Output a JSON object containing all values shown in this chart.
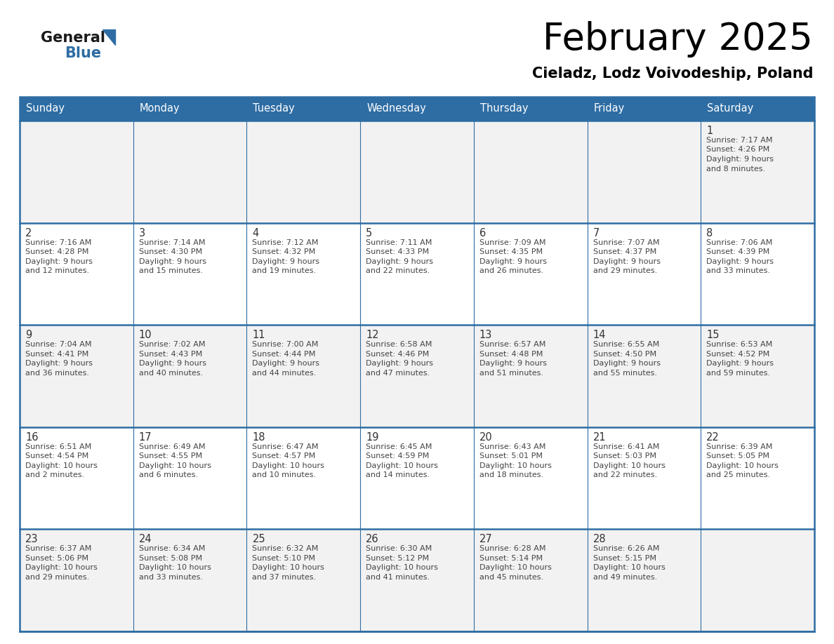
{
  "title": "February 2025",
  "subtitle": "Cieladz, Lodz Voivodeship, Poland",
  "days_of_week": [
    "Sunday",
    "Monday",
    "Tuesday",
    "Wednesday",
    "Thursday",
    "Friday",
    "Saturday"
  ],
  "header_bg": "#2e6da4",
  "header_text": "#ffffff",
  "cell_bg_odd": "#f2f2f2",
  "cell_bg_even": "#ffffff",
  "cell_border": "#2e6da4",
  "text_color": "#444444",
  "day_number_color": "#333333",
  "calendar_data": [
    [
      null,
      null,
      null,
      null,
      null,
      null,
      {
        "day": 1,
        "sunrise": "7:17 AM",
        "sunset": "4:26 PM",
        "daylight": "9 hours and 8 minutes"
      }
    ],
    [
      {
        "day": 2,
        "sunrise": "7:16 AM",
        "sunset": "4:28 PM",
        "daylight": "9 hours and 12 minutes"
      },
      {
        "day": 3,
        "sunrise": "7:14 AM",
        "sunset": "4:30 PM",
        "daylight": "9 hours and 15 minutes"
      },
      {
        "day": 4,
        "sunrise": "7:12 AM",
        "sunset": "4:32 PM",
        "daylight": "9 hours and 19 minutes"
      },
      {
        "day": 5,
        "sunrise": "7:11 AM",
        "sunset": "4:33 PM",
        "daylight": "9 hours and 22 minutes"
      },
      {
        "day": 6,
        "sunrise": "7:09 AM",
        "sunset": "4:35 PM",
        "daylight": "9 hours and 26 minutes"
      },
      {
        "day": 7,
        "sunrise": "7:07 AM",
        "sunset": "4:37 PM",
        "daylight": "9 hours and 29 minutes"
      },
      {
        "day": 8,
        "sunrise": "7:06 AM",
        "sunset": "4:39 PM",
        "daylight": "9 hours and 33 minutes"
      }
    ],
    [
      {
        "day": 9,
        "sunrise": "7:04 AM",
        "sunset": "4:41 PM",
        "daylight": "9 hours and 36 minutes"
      },
      {
        "day": 10,
        "sunrise": "7:02 AM",
        "sunset": "4:43 PM",
        "daylight": "9 hours and 40 minutes"
      },
      {
        "day": 11,
        "sunrise": "7:00 AM",
        "sunset": "4:44 PM",
        "daylight": "9 hours and 44 minutes"
      },
      {
        "day": 12,
        "sunrise": "6:58 AM",
        "sunset": "4:46 PM",
        "daylight": "9 hours and 47 minutes"
      },
      {
        "day": 13,
        "sunrise": "6:57 AM",
        "sunset": "4:48 PM",
        "daylight": "9 hours and 51 minutes"
      },
      {
        "day": 14,
        "sunrise": "6:55 AM",
        "sunset": "4:50 PM",
        "daylight": "9 hours and 55 minutes"
      },
      {
        "day": 15,
        "sunrise": "6:53 AM",
        "sunset": "4:52 PM",
        "daylight": "9 hours and 59 minutes"
      }
    ],
    [
      {
        "day": 16,
        "sunrise": "6:51 AM",
        "sunset": "4:54 PM",
        "daylight": "10 hours and 2 minutes"
      },
      {
        "day": 17,
        "sunrise": "6:49 AM",
        "sunset": "4:55 PM",
        "daylight": "10 hours and 6 minutes"
      },
      {
        "day": 18,
        "sunrise": "6:47 AM",
        "sunset": "4:57 PM",
        "daylight": "10 hours and 10 minutes"
      },
      {
        "day": 19,
        "sunrise": "6:45 AM",
        "sunset": "4:59 PM",
        "daylight": "10 hours and 14 minutes"
      },
      {
        "day": 20,
        "sunrise": "6:43 AM",
        "sunset": "5:01 PM",
        "daylight": "10 hours and 18 minutes"
      },
      {
        "day": 21,
        "sunrise": "6:41 AM",
        "sunset": "5:03 PM",
        "daylight": "10 hours and 22 minutes"
      },
      {
        "day": 22,
        "sunrise": "6:39 AM",
        "sunset": "5:05 PM",
        "daylight": "10 hours and 25 minutes"
      }
    ],
    [
      {
        "day": 23,
        "sunrise": "6:37 AM",
        "sunset": "5:06 PM",
        "daylight": "10 hours and 29 minutes"
      },
      {
        "day": 24,
        "sunrise": "6:34 AM",
        "sunset": "5:08 PM",
        "daylight": "10 hours and 33 minutes"
      },
      {
        "day": 25,
        "sunrise": "6:32 AM",
        "sunset": "5:10 PM",
        "daylight": "10 hours and 37 minutes"
      },
      {
        "day": 26,
        "sunrise": "6:30 AM",
        "sunset": "5:12 PM",
        "daylight": "10 hours and 41 minutes"
      },
      {
        "day": 27,
        "sunrise": "6:28 AM",
        "sunset": "5:14 PM",
        "daylight": "10 hours and 45 minutes"
      },
      {
        "day": 28,
        "sunrise": "6:26 AM",
        "sunset": "5:15 PM",
        "daylight": "10 hours and 49 minutes"
      },
      null
    ]
  ],
  "logo_color_general": "#1a1a1a",
  "logo_color_blue": "#2e6da4",
  "figsize": [
    11.88,
    9.18
  ],
  "dpi": 100
}
